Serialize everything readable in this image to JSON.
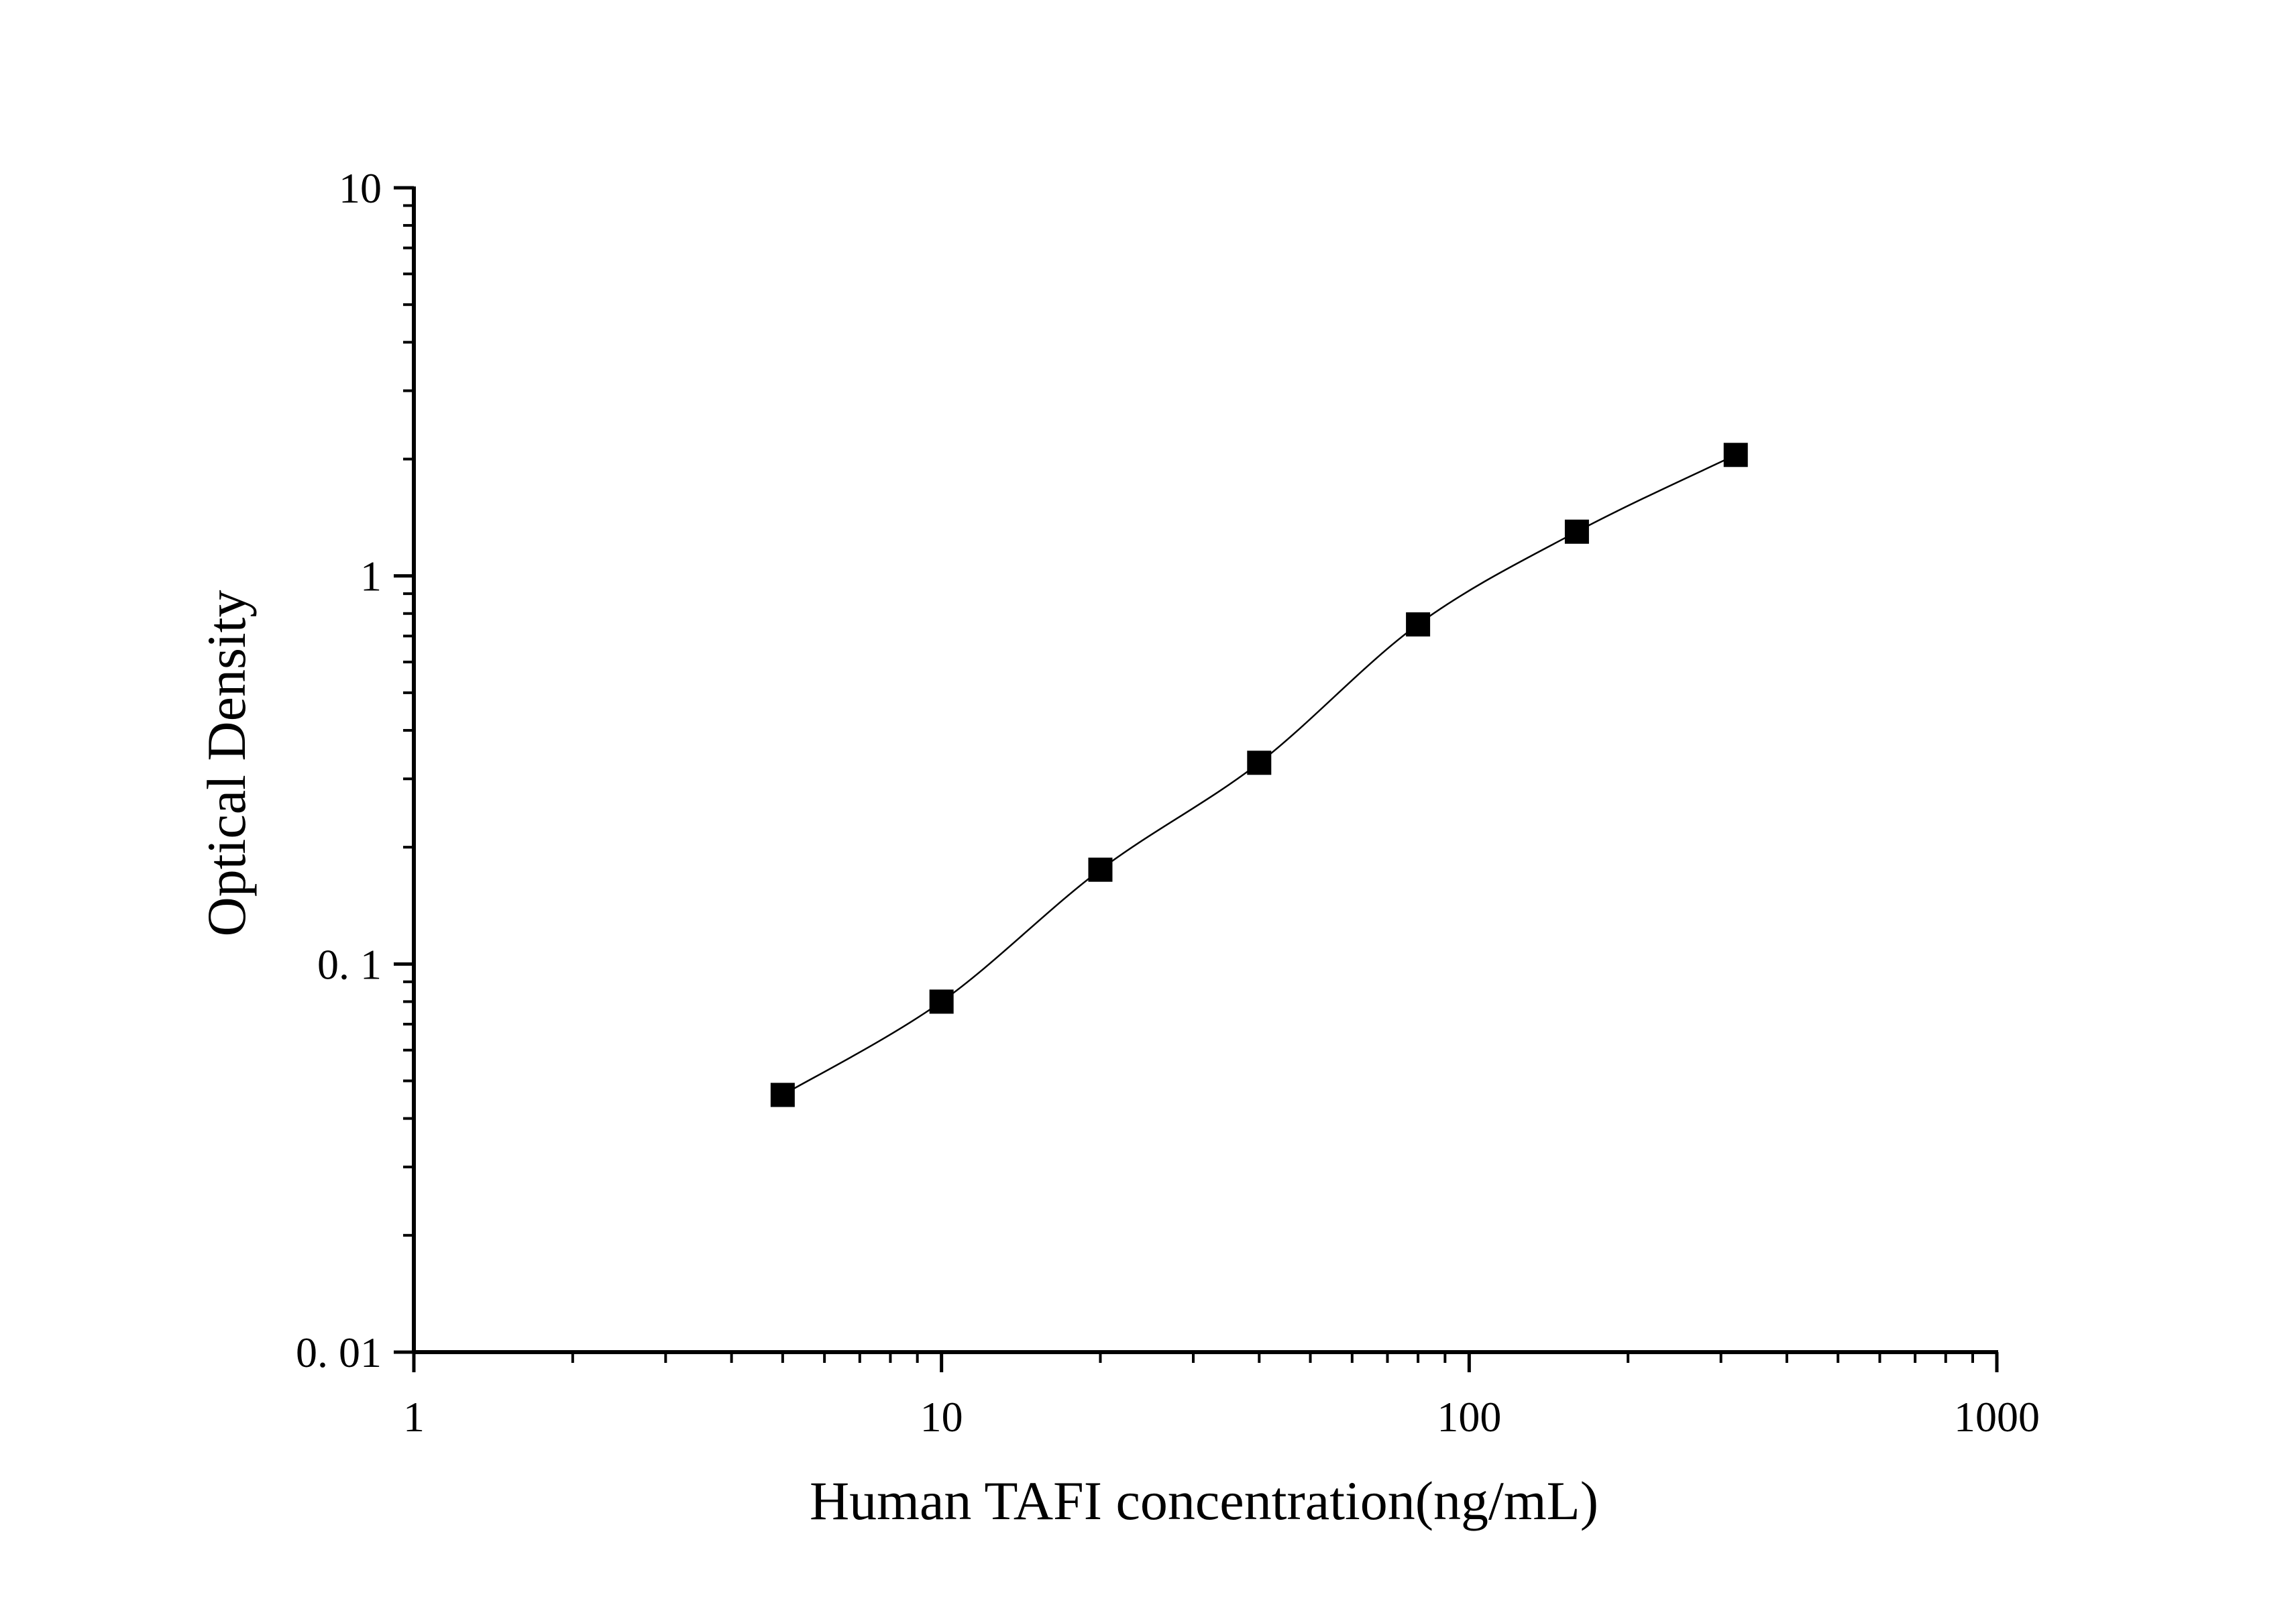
{
  "chart_data": {
    "type": "scatter",
    "title": "",
    "xlabel": "Human TAFI concentration(ng/mL)",
    "ylabel": "Optical Density",
    "x_scale": "log",
    "y_scale": "log",
    "xlim": [
      1,
      1000
    ],
    "ylim": [
      0.01,
      10
    ],
    "x_ticks": [
      1,
      10,
      100,
      1000
    ],
    "x_tick_labels": [
      "1",
      "10",
      "100",
      "1000"
    ],
    "y_ticks": [
      0.01,
      0.1,
      1,
      10
    ],
    "y_tick_labels": [
      "0. 01",
      "0. 1",
      "1",
      "10"
    ],
    "grid": false,
    "legend": "none",
    "series": [
      {
        "marker": "square",
        "line": "fitted-curve",
        "color": "#000000",
        "x": [
          5,
          10,
          20,
          40,
          80,
          160,
          320
        ],
        "y": [
          0.046,
          0.08,
          0.175,
          0.33,
          0.75,
          1.3,
          2.05
        ]
      }
    ]
  }
}
